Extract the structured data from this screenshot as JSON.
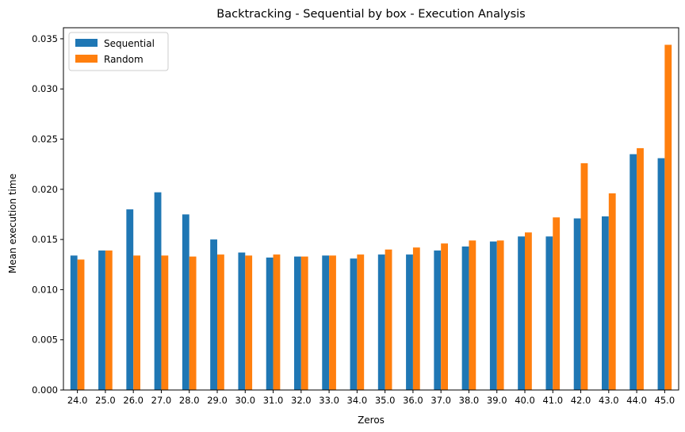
{
  "chart_data": {
    "type": "bar",
    "title": "Backtracking - Sequential by box - Execution Analysis",
    "xlabel": "Zeros",
    "ylabel": "Mean execution time",
    "categories": [
      "24.0",
      "25.0",
      "26.0",
      "27.0",
      "28.0",
      "29.0",
      "30.0",
      "31.0",
      "32.0",
      "33.0",
      "34.0",
      "35.0",
      "36.0",
      "37.0",
      "38.0",
      "39.0",
      "40.0",
      "41.0",
      "42.0",
      "43.0",
      "44.0",
      "45.0"
    ],
    "series": [
      {
        "name": "Sequential",
        "color": "#1f77b4",
        "values": [
          0.0134,
          0.0139,
          0.018,
          0.0197,
          0.0175,
          0.015,
          0.0137,
          0.0132,
          0.0133,
          0.0134,
          0.0131,
          0.0135,
          0.0135,
          0.0139,
          0.0143,
          0.0148,
          0.0153,
          0.0153,
          0.0171,
          0.0173,
          0.0235,
          0.0231
        ]
      },
      {
        "name": "Random",
        "color": "#ff7f0e",
        "values": [
          0.013,
          0.0139,
          0.0134,
          0.0134,
          0.0133,
          0.0135,
          0.0134,
          0.0135,
          0.0133,
          0.0134,
          0.0135,
          0.014,
          0.0142,
          0.0146,
          0.0149,
          0.0149,
          0.0157,
          0.0172,
          0.0226,
          0.0196,
          0.0241,
          0.0344
        ]
      }
    ],
    "ylim": [
      0,
      0.0361
    ],
    "yticks": [
      "0.000",
      "0.005",
      "0.010",
      "0.015",
      "0.020",
      "0.025",
      "0.030",
      "0.035"
    ],
    "ytick_values": [
      0,
      0.005,
      0.01,
      0.015,
      0.02,
      0.025,
      0.03,
      0.035
    ],
    "grid": false,
    "legend_position": "top-left"
  }
}
